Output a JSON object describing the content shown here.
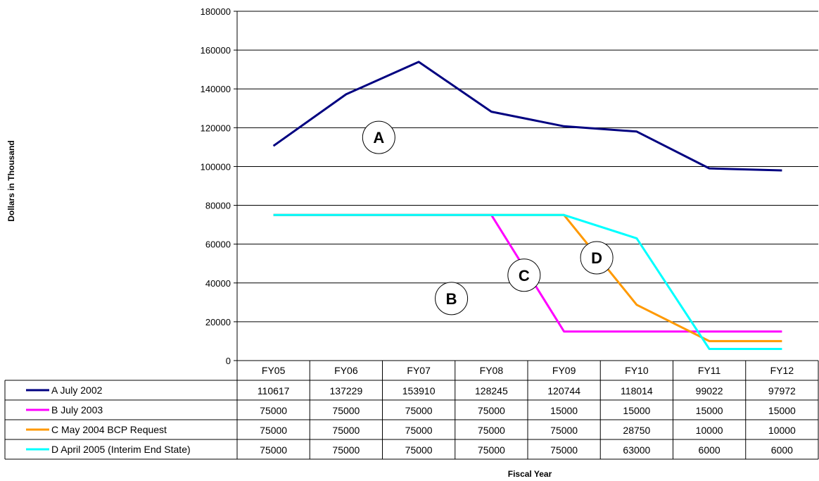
{
  "chart_data": {
    "type": "line",
    "categories": [
      "FY05",
      "FY06",
      "FY07",
      "FY08",
      "FY09",
      "FY10",
      "FY11",
      "FY12"
    ],
    "series": [
      {
        "name": "A July 2002",
        "color": "#000080",
        "values": [
          110617,
          137229,
          153910,
          128245,
          120744,
          118014,
          99022,
          97972
        ]
      },
      {
        "name": "B July 2003",
        "color": "#FF00FF",
        "values": [
          75000,
          75000,
          75000,
          75000,
          15000,
          15000,
          15000,
          15000
        ]
      },
      {
        "name": "C May 2004 BCP Request",
        "color": "#FF9900",
        "values": [
          75000,
          75000,
          75000,
          75000,
          75000,
          28750,
          10000,
          10000
        ]
      },
      {
        "name": "D April 2005 (Interim End State)",
        "color": "#00FFFF",
        "values": [
          75000,
          75000,
          75000,
          75000,
          75000,
          63000,
          6000,
          6000
        ]
      }
    ],
    "xlabel": "Fiscal Year",
    "ylabel": "Dollars in Thousand",
    "ylim": [
      0,
      180000
    ],
    "yticks": [
      0,
      20000,
      40000,
      60000,
      80000,
      100000,
      120000,
      140000,
      160000,
      180000
    ],
    "grid": true,
    "annotations": [
      {
        "label": "A",
        "x": "FY07",
        "y": 115000
      },
      {
        "label": "B",
        "x": "FY08",
        "y": 32000
      },
      {
        "label": "C",
        "x": "FY09",
        "y": 44000
      },
      {
        "label": "D",
        "x": "FY10",
        "y": 53000
      }
    ],
    "data_table": true
  }
}
